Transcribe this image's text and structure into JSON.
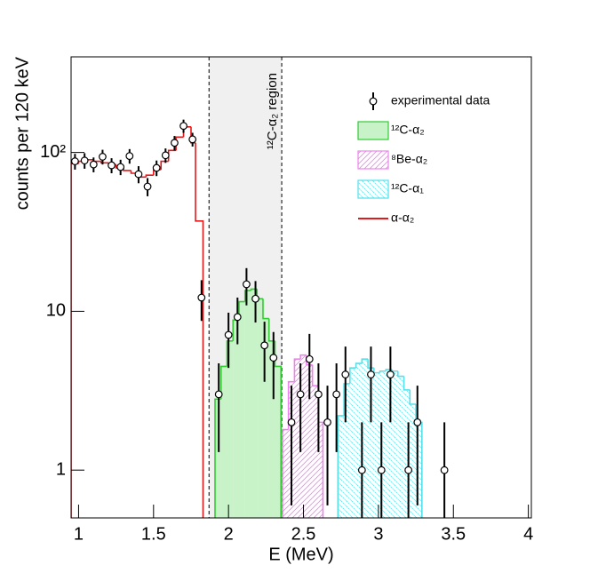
{
  "chart_data": {
    "type": "histogram",
    "xlabel": "E (MeV)",
    "ylabel": "counts per 120 keV",
    "xlim": [
      0.95,
      4.02
    ],
    "ylim": [
      0.5,
      400
    ],
    "log_y": true,
    "xticks": [
      1,
      1.5,
      2,
      2.5,
      3,
      3.5,
      4
    ],
    "yticks": [
      1,
      10,
      {
        "value": 100,
        "label": "10²"
      }
    ],
    "legend": "upper right",
    "region": {
      "xlim": [
        1.87,
        2.355
      ],
      "label": "¹²C-α₂ region"
    },
    "data": {
      "name": "experimental data",
      "color": "#000000",
      "x": [
        0.976,
        1.04,
        1.1,
        1.16,
        1.22,
        1.28,
        1.34,
        1.4,
        1.46,
        1.52,
        1.58,
        1.64,
        1.7,
        1.76,
        1.82,
        1.935,
        2.0,
        2.06,
        2.12,
        2.18,
        2.24,
        2.3,
        2.42,
        2.48,
        2.54,
        2.6,
        2.66,
        2.72,
        2.78,
        2.89,
        2.95,
        3.02,
        3.08,
        3.2,
        3.26,
        3.44
      ],
      "values": [
        88,
        89,
        84,
        94,
        83,
        81,
        95,
        73,
        61,
        80,
        96,
        115,
        147,
        121,
        12.2,
        3.0,
        7.1,
        9.2,
        14.8,
        12.0,
        6.1,
        5.1,
        2.0,
        3.0,
        5.0,
        3.0,
        2.0,
        3.0,
        4.0,
        1.0,
        4.0,
        1.0,
        4.0,
        1.0,
        2.0,
        1.0
      ],
      "errors": [
        10,
        10,
        9,
        10,
        9,
        9,
        10,
        9,
        8,
        9,
        10,
        12,
        14,
        12,
        3.5,
        1.7,
        2.7,
        3.0,
        3.9,
        3.5,
        2.5,
        2.3,
        1.4,
        1.7,
        2.2,
        1.7,
        1.4,
        1.7,
        2.0,
        1.0,
        2.0,
        1.0,
        2.0,
        1.0,
        1.4,
        1.0
      ]
    },
    "series": [
      {
        "name": "¹²C-α₂",
        "color": "#33cc33",
        "fill": "solid",
        "bins": [
          1.91,
          1.95,
          1.99,
          2.03,
          2.07,
          2.11,
          2.15,
          2.19,
          2.23,
          2.27,
          2.31,
          2.35
        ],
        "values": [
          2.8,
          4.5,
          6.5,
          8.8,
          11.5,
          13.5,
          13.8,
          12,
          9,
          6.5,
          4.5
        ]
      },
      {
        "name": "⁸Be-α₂",
        "color": "#ee82ee",
        "fill": "hatch-forward",
        "bins": [
          2.36,
          2.4,
          2.44,
          2.48,
          2.52,
          2.56,
          2.6,
          2.63
        ],
        "values": [
          1.8,
          3.6,
          5.0,
          5.3,
          4.6,
          3.4,
          2.0
        ]
      },
      {
        "name": "¹²C-α₁",
        "color": "#55e0ea",
        "fill": "hatch-back",
        "bins": [
          2.73,
          2.77,
          2.81,
          2.85,
          2.89,
          2.93,
          2.97,
          3.01,
          3.05,
          3.09,
          3.13,
          3.17,
          3.21,
          3.25,
          3.29
        ],
        "values": [
          2.2,
          3.5,
          4.4,
          4.7,
          5.0,
          4.4,
          4.1,
          4.2,
          4.3,
          4.2,
          3.9,
          3.2,
          2.6,
          2.0
        ]
      },
      {
        "name": "α-α₂",
        "color": "#e31a1c",
        "fill": "none",
        "bins": [
          0.95,
          1.0,
          1.05,
          1.1,
          1.15,
          1.2,
          1.25,
          1.3,
          1.35,
          1.4,
          1.45,
          1.5,
          1.55,
          1.6,
          1.65,
          1.7,
          1.75,
          1.78,
          1.83
        ],
        "values": [
          85,
          88,
          90,
          88,
          86,
          84,
          80,
          77,
          74,
          70,
          72,
          78,
          88,
          103,
          125,
          145,
          115,
          37
        ]
      }
    ]
  }
}
